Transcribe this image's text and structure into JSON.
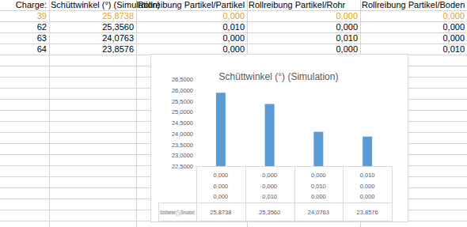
{
  "table": {
    "header": [
      "Charge:",
      "Schüttwinkel (°) (Simulation)",
      "Rollreibung Partikel/Partikel",
      "Rollreibung Partikel/Rohr",
      "Rollreibung Partikel/Boden"
    ],
    "rows": [
      [
        "39",
        "25,8738",
        "0,000",
        "0,000",
        "0,000"
      ],
      [
        "62",
        "25,3560",
        "0,010",
        "0,000",
        "0,000"
      ],
      [
        "63",
        "24,0763",
        "0,000",
        "0,010",
        "0,000"
      ],
      [
        "64",
        "23,8576",
        "0,000",
        "0,000",
        "0,010"
      ]
    ]
  },
  "chart_data": {
    "type": "bar",
    "title": "Schüttwinkel (°) (Simulation)",
    "categories": [
      [
        "0,000",
        "0,000",
        "0,000"
      ],
      [
        "0,000",
        "0,000",
        "0,010"
      ],
      [
        "0,000",
        "0,010",
        "0,000"
      ],
      [
        "0,010",
        "0,000",
        "0,000"
      ]
    ],
    "series": [
      {
        "name": "Schüttwinkel (°) (Simulation)",
        "color": "#5b9bd5",
        "values": [
          25.8738,
          25.356,
          24.0763,
          23.8576
        ],
        "value_labels": [
          "25,8738",
          "25,3560",
          "24,0763",
          "23,8576"
        ]
      }
    ],
    "ylim": [
      22.5,
      26.5
    ],
    "yticks": [
      {
        "value": 22.5,
        "label": "22,5000"
      },
      {
        "value": 23,
        "label": "23,0000"
      },
      {
        "value": 23.5,
        "label": "23,5000"
      },
      {
        "value": 24,
        "label": "24,0000"
      },
      {
        "value": 24.5,
        "label": "24,5000"
      },
      {
        "value": 25,
        "label": "25,0000"
      },
      {
        "value": 25.5,
        "label": "25,5000"
      },
      {
        "value": 26,
        "label": "26,0000"
      },
      {
        "value": 26.5,
        "label": "26,5000"
      }
    ],
    "grid": false
  }
}
